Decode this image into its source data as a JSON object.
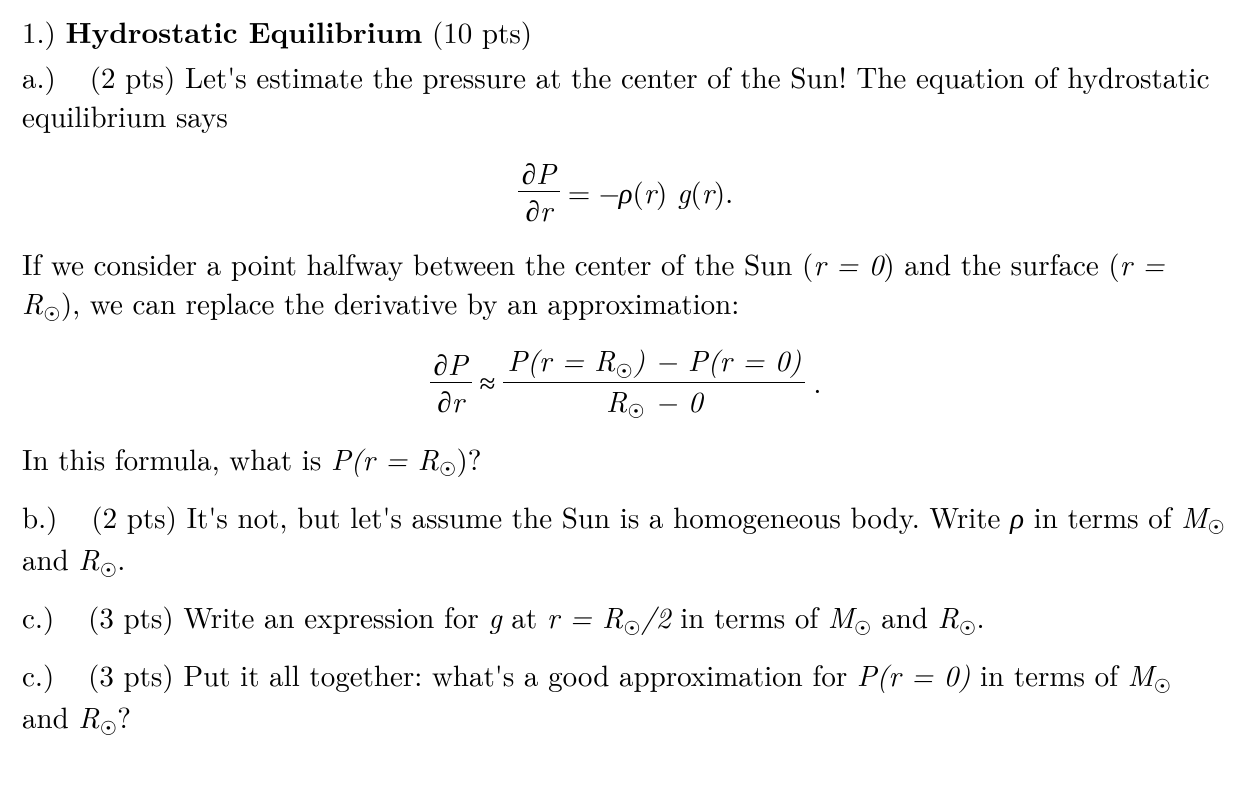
{
  "problem": {
    "number_label": "1.)",
    "title": "Hydrostatic Equilibrium",
    "points_label": "(10 pts)"
  },
  "part_a": {
    "label": "a.)",
    "points": "(2 pts)",
    "text1": "Let's estimate the pressure at the center of the Sun!  The equation of hydrostatic equilibrium says",
    "eq1": {
      "num": "∂P",
      "den": "∂r",
      "op": "=",
      "rhs_prefix": "−",
      "rhs_rho": "ρ",
      "rhs_paren_open": "(",
      "rhs_r1": "r",
      "rhs_paren_close": ") ",
      "rhs_g": "g",
      "rhs_paren2_open": "(",
      "rhs_r2": "r",
      "rhs_paren2_close": ").",
      "full_rhs": "−ρ(r) g(r)."
    },
    "text2a": "If we consider a point halfway between the center of the Sun (",
    "text2_r0": "r = 0",
    "text2b": ") and the surface (",
    "text2_rR": "r = R",
    "text2c": "), we can replace the derivative by an approximation:",
    "eq2": {
      "lhs_num": "∂P",
      "lhs_den": "∂r",
      "op": "≈",
      "rhs_num_a": "P(r = R",
      "rhs_num_b": ") − P(r = 0)",
      "rhs_den_a": "R",
      "rhs_den_b": " − 0",
      "tail": "."
    },
    "text3a": "In this formula, what is ",
    "text3_expr": "P(r = R",
    "text3b": ")?"
  },
  "part_b": {
    "label": "b.)",
    "points": "(2 pts)",
    "text1": "It's not, but let's assume the Sun is a homogeneous body.  Write ",
    "rho": "ρ",
    "text2": " in terms of ",
    "M": "M",
    "and": " and ",
    "R": "R",
    "tail": "."
  },
  "part_c1": {
    "label": "c.)",
    "points": "(3 pts)",
    "text1": "Write an expression for ",
    "g": "g",
    "text2": " at ",
    "expr_r": "r = R",
    "expr_half": "/2",
    "text3": " in terms of ",
    "M": "M",
    "and": " and ",
    "R": "R",
    "tail": "."
  },
  "part_c2": {
    "label": "c.)",
    "points": "(3 pts)",
    "text1": "Put it all together: what's a good approximation for ",
    "expr": "P(r = 0)",
    "text2": " in terms of ",
    "M": "M",
    "and": " and ",
    "R": "R",
    "tail": "?"
  },
  "glyphs": {
    "sun": "☉"
  }
}
